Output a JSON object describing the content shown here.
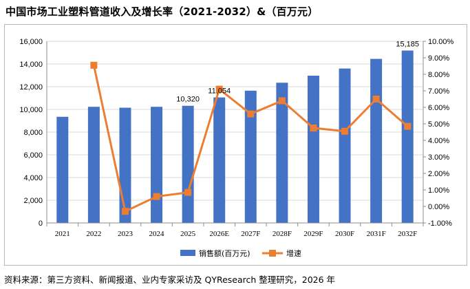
{
  "title": "中国市场工业塑料管道收入及增长率（2021-2032）&（百万元）",
  "source": "资料来源：第三方资料、新闻报道、业内专家采访及 QYResearch 整理研究，2026 年",
  "colors": {
    "bar": "#4472c4",
    "line": "#ed7d31",
    "grid": "#d9d9d9"
  },
  "chart_data": {
    "type": "bar+line",
    "categories": [
      "2021",
      "2022",
      "2023",
      "2024",
      "2025",
      "2026E",
      "2027F",
      "2028F",
      "2029F",
      "2030F",
      "2031F",
      "2032F"
    ],
    "series": [
      {
        "name": "销售额(百万元)",
        "type": "bar",
        "axis": "left",
        "values": [
          9350,
          10230,
          10150,
          10230,
          10320,
          11054,
          11650,
          12350,
          12970,
          13600,
          14450,
          15185
        ]
      },
      {
        "name": "增速",
        "type": "line",
        "axis": "right",
        "values": [
          null,
          8.55,
          -0.3,
          0.6,
          0.85,
          7.1,
          5.6,
          6.4,
          4.75,
          4.55,
          6.5,
          4.85
        ]
      }
    ],
    "data_labels": [
      {
        "index": 4,
        "text": "10,320"
      },
      {
        "index": 5,
        "text": "11,054"
      },
      {
        "index": 11,
        "text": "15,185"
      }
    ],
    "y_left": {
      "min": 0,
      "max": 16000,
      "ticks": [
        "0",
        "2,000",
        "4,000",
        "6,000",
        "8,000",
        "10,000",
        "12,000",
        "14,000",
        "16,000"
      ]
    },
    "y_right": {
      "min": -1,
      "max": 10,
      "ticks": [
        "-1.00%",
        "0.00%",
        "1.00%",
        "2.00%",
        "3.00%",
        "4.00%",
        "5.00%",
        "6.00%",
        "7.00%",
        "8.00%",
        "9.00%",
        "10.00%"
      ]
    },
    "legend": {
      "position": "bottom",
      "items": [
        "销售额(百万元)",
        "增速"
      ]
    },
    "grid": true
  }
}
